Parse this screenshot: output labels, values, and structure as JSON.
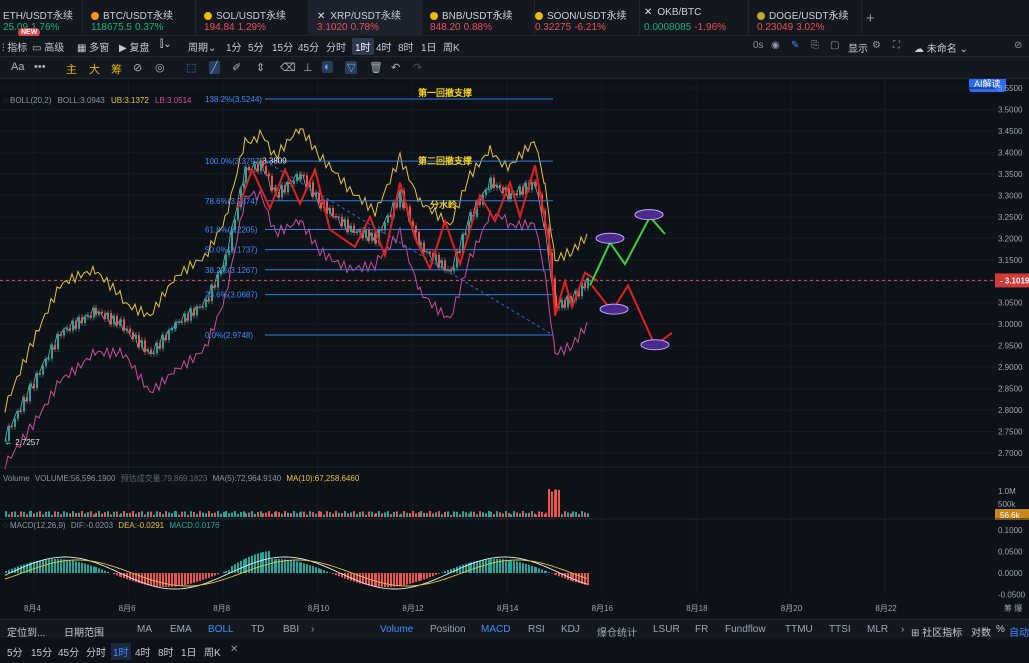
{
  "tabs": [
    {
      "name": "ETH/USDT永续",
      "price": "25.09",
      "change": "1.76%",
      "neg": false,
      "dot": "#627eea"
    },
    {
      "name": "BTC/USDT永续",
      "price": "118675.5",
      "change": "0.37%",
      "neg": false,
      "dot": "#f7931a"
    },
    {
      "name": "SOL/USDT永续",
      "price": "194.84",
      "change": "1.29%",
      "neg": true,
      "dot": "#f0b90b"
    },
    {
      "name": "XRP/USDT永续",
      "price": "3.1020",
      "change": "0.78%",
      "neg": true,
      "dot": "#9aa4b2"
    },
    {
      "name": "BNB/USDT永续",
      "price": "848.20",
      "change": "0.88%",
      "neg": true,
      "dot": "#f0b90b"
    },
    {
      "name": "SOON/USDT永续",
      "price": "0.32275",
      "change": "-6.21%",
      "neg": true,
      "dot": "#f0b90b"
    },
    {
      "name": "OKB/BTC",
      "price": "0.0008085",
      "change": "-1.96%",
      "neg": false,
      "dot": "#ffffff"
    },
    {
      "name": "DOGE/USDT永续",
      "price": "0.23049",
      "change": "3.02%",
      "neg": true,
      "dot": "#c2a633"
    }
  ],
  "new_badge": "NEW",
  "plus": "+",
  "toolbar": {
    "indicator": "指标",
    "advanced": "高级",
    "multi": "多窗",
    "replay": "复盘",
    "period": "周期",
    "intervals": [
      "1分",
      "5分",
      "15分",
      "45分",
      "分时",
      "1时",
      "4时",
      "8时",
      "1日",
      "周K"
    ],
    "active_interval": "1时",
    "countdown": "0s",
    "display": "显示",
    "unnamed": "未命名",
    "ai": "AI解读"
  },
  "draw_tools": {
    "font": "Aa",
    "more": "•••",
    "main": "主",
    "big": "大",
    "chip": "筹"
  },
  "price_axis": [
    "3.5500",
    "3.5000",
    "3.4500",
    "3.4000",
    "3.3500",
    "3.3000",
    "3.2500",
    "3.2000",
    "3.1500",
    "3.1000",
    "3.0500",
    "3.0000",
    "2.9500",
    "2.9000",
    "2.8500",
    "2.8000",
    "2.7500",
    "2.7000"
  ],
  "current_price": "3.1019",
  "boll": {
    "label": "BOLL(20,2)",
    "boll": "BOLL:3.0943",
    "ub": "UB:3.1372",
    "lb": "LB:3.0514"
  },
  "fib_levels": [
    {
      "label": "138.2%(3.5244)",
      "price": 3.5244
    },
    {
      "label": "100.0%(3.3797)",
      "price": 3.3797
    },
    {
      "label": "78.6%(3.2874)",
      "price": 3.2874
    },
    {
      "label": "61.8%(3.2205)",
      "price": 3.2205
    },
    {
      "label": "50.0%(3.1737)",
      "price": 3.1737
    },
    {
      "label": "38.2%(3.1267)",
      "price": 3.1267
    },
    {
      "label": "23.6%(3.0687)",
      "price": 3.0687
    },
    {
      "label": "0.0%(2.9748)",
      "price": 2.9748
    }
  ],
  "annotations": {
    "first": "第一回撤支撑",
    "second": "第二回撤支撑",
    "divide": "分水岭",
    "high": "← 3.3809",
    "low": "← 2.7257"
  },
  "volume": {
    "label": "Volume",
    "value": "VOLUME:56,596.1900",
    "forecast": "预估成交量:79,869.1823",
    "ma5": "MA(5):72,964.9140",
    "ma10": "MA(10):67,258.6460",
    "axis_top": "1.0M",
    "axis_mid": "500k",
    "current": "56.6k"
  },
  "macd": {
    "label": "MACD(12,26,9)",
    "dif": "DIF:-0.0203",
    "dea": "DEA:-0.0291",
    "macd": "MACD:0.0176",
    "axis": [
      "0.1000",
      "0.0500",
      "0.0000",
      "-0.0500"
    ]
  },
  "dates": [
    "8月4",
    "8月6",
    "8月8",
    "8月10",
    "8月12",
    "8月14",
    "8月16",
    "8月18",
    "8月20",
    "8月22"
  ],
  "bottom_tabs": [
    "定位到...",
    "日期范围",
    "MA",
    "EMA",
    "BOLL",
    "TD",
    "BBI",
    "Volume",
    "Position",
    "MACD",
    "RSI",
    "KDJ",
    "爆仓统计",
    "LSUR",
    "FR",
    "Fundflow",
    "TTMU",
    "TTSI",
    "MLR",
    "社区指标",
    "对数",
    "%",
    "自动"
  ],
  "bottom_intervals": [
    "5分",
    "15分",
    "45分",
    "分时",
    "1时",
    "4时",
    "8时",
    "1日",
    "周K"
  ],
  "colors": {
    "up": "#26a69a",
    "down": "#ef5350",
    "ub": "#e6c43a",
    "lb": "#d04a9a",
    "mid": "#9aa4b2",
    "fib": "#2e7be6",
    "proj_up": "#3fcf3f",
    "proj_down": "#e02020",
    "price_line": "#e05050"
  }
}
